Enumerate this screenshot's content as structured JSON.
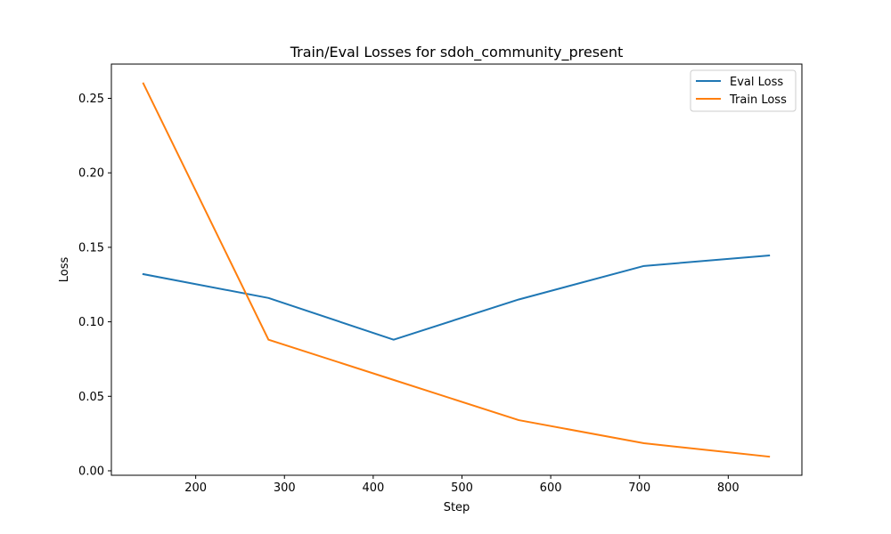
{
  "chart_data": {
    "type": "line",
    "title": "Train/Eval Losses for sdoh_community_present",
    "xlabel": "Step",
    "ylabel": "Loss",
    "xlim": [
      105,
      883
    ],
    "ylim": [
      -0.003,
      0.273
    ],
    "xticks": [
      200,
      300,
      400,
      500,
      600,
      700,
      800
    ],
    "yticks": [
      0.0,
      0.05,
      0.1,
      0.15,
      0.2,
      0.25
    ],
    "ytick_labels": [
      "0.00",
      "0.05",
      "0.10",
      "0.15",
      "0.20",
      "0.25"
    ],
    "grid": false,
    "legend_position": "top-right",
    "series": [
      {
        "name": "Eval Loss",
        "color": "#1f77b4",
        "x": [
          141,
          282,
          423,
          564,
          705,
          846
        ],
        "y": [
          0.132,
          0.116,
          0.088,
          0.115,
          0.1375,
          0.1445
        ]
      },
      {
        "name": "Train Loss",
        "color": "#ff7f0e",
        "x": [
          141,
          282,
          423,
          564,
          705,
          846
        ],
        "y": [
          0.26,
          0.088,
          0.061,
          0.034,
          0.0185,
          0.0095
        ]
      }
    ]
  }
}
